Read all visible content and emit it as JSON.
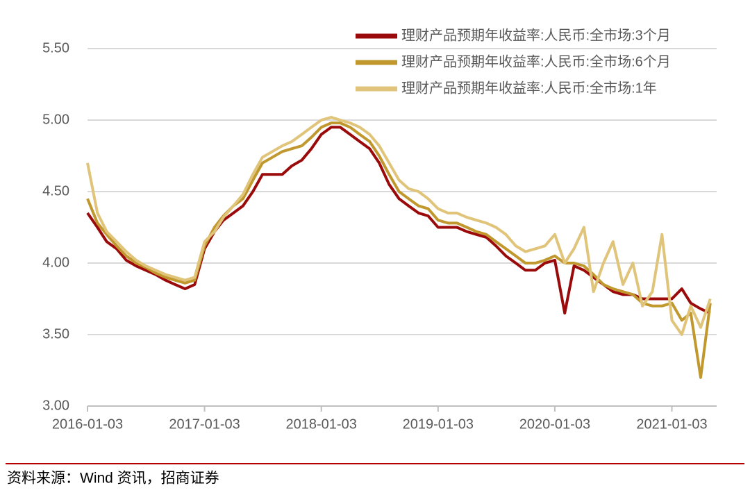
{
  "chart_data": {
    "type": "line",
    "x": [
      "2016-01-03",
      "2016-02-03",
      "2016-03-03",
      "2016-04-03",
      "2016-05-03",
      "2016-06-03",
      "2016-07-03",
      "2016-08-03",
      "2016-09-03",
      "2016-10-03",
      "2016-11-03",
      "2016-12-03",
      "2017-01-03",
      "2017-02-03",
      "2017-03-03",
      "2017-04-03",
      "2017-05-03",
      "2017-06-03",
      "2017-07-03",
      "2017-08-03",
      "2017-09-03",
      "2017-10-03",
      "2017-11-03",
      "2017-12-03",
      "2018-01-03",
      "2018-02-03",
      "2018-03-03",
      "2018-04-03",
      "2018-05-03",
      "2018-06-03",
      "2018-07-03",
      "2018-08-03",
      "2018-09-03",
      "2018-10-03",
      "2018-11-03",
      "2018-12-03",
      "2019-01-03",
      "2019-02-03",
      "2019-03-03",
      "2019-04-03",
      "2019-05-03",
      "2019-06-03",
      "2019-07-03",
      "2019-08-03",
      "2019-09-03",
      "2019-10-03",
      "2019-11-03",
      "2019-12-03",
      "2020-01-03",
      "2020-02-03",
      "2020-03-03",
      "2020-04-03",
      "2020-05-03",
      "2020-06-03",
      "2020-07-03",
      "2020-08-03",
      "2020-09-03",
      "2020-10-03",
      "2020-11-03",
      "2020-12-03",
      "2021-01-03",
      "2021-02-03",
      "2021-03-03",
      "2021-04-03",
      "2021-05-03"
    ],
    "series": [
      {
        "name": "理财产品预期年收益率:人民币:全市场:3个月",
        "color": "#9b0a0a",
        "values": [
          4.35,
          4.25,
          4.15,
          4.1,
          4.02,
          3.98,
          3.95,
          3.92,
          3.88,
          3.85,
          3.82,
          3.85,
          4.1,
          4.22,
          4.3,
          4.35,
          4.4,
          4.5,
          4.62,
          4.62,
          4.62,
          4.68,
          4.72,
          4.8,
          4.9,
          4.95,
          4.95,
          4.9,
          4.85,
          4.8,
          4.7,
          4.55,
          4.45,
          4.4,
          4.35,
          4.33,
          4.25,
          4.25,
          4.25,
          4.22,
          4.2,
          4.18,
          4.12,
          4.05,
          4.0,
          3.95,
          3.95,
          4.0,
          4.02,
          3.65,
          3.98,
          3.95,
          3.9,
          3.85,
          3.8,
          3.78,
          3.78,
          3.75,
          3.75,
          3.75,
          3.75,
          3.82,
          3.72,
          3.68,
          3.65
        ]
      },
      {
        "name": "理财产品预期年收益率:人民币:全市场:6个月",
        "color": "#c0982e",
        "values": [
          4.45,
          4.28,
          4.2,
          4.12,
          4.05,
          4.0,
          3.97,
          3.93,
          3.9,
          3.88,
          3.86,
          3.88,
          4.12,
          4.25,
          4.33,
          4.4,
          4.45,
          4.58,
          4.7,
          4.74,
          4.78,
          4.8,
          4.82,
          4.88,
          4.95,
          4.98,
          4.98,
          4.95,
          4.9,
          4.85,
          4.75,
          4.62,
          4.5,
          4.45,
          4.4,
          4.38,
          4.3,
          4.28,
          4.28,
          4.25,
          4.22,
          4.2,
          4.15,
          4.1,
          4.05,
          4.0,
          4.0,
          4.02,
          4.05,
          4.0,
          4.0,
          3.98,
          3.92,
          3.85,
          3.82,
          3.8,
          3.78,
          3.72,
          3.7,
          3.7,
          3.72,
          3.6,
          3.65,
          3.2,
          3.72
        ]
      },
      {
        "name": "理财产品预期年收益率:人民币:全市场:1年",
        "color": "#e0c47a",
        "values": [
          4.7,
          4.35,
          4.22,
          4.15,
          4.08,
          4.02,
          3.98,
          3.95,
          3.92,
          3.9,
          3.88,
          3.9,
          4.15,
          4.22,
          4.32,
          4.4,
          4.48,
          4.62,
          4.74,
          4.78,
          4.82,
          4.85,
          4.9,
          4.95,
          5.0,
          5.02,
          5.0,
          4.98,
          4.95,
          4.9,
          4.82,
          4.7,
          4.58,
          4.52,
          4.5,
          4.45,
          4.38,
          4.35,
          4.35,
          4.32,
          4.3,
          4.28,
          4.25,
          4.2,
          4.12,
          4.08,
          4.1,
          4.12,
          4.2,
          4.0,
          4.1,
          4.25,
          3.8,
          4.0,
          4.15,
          3.85,
          4.0,
          3.7,
          3.8,
          4.2,
          3.6,
          3.5,
          3.7,
          3.55,
          3.75
        ]
      }
    ],
    "xlim": [
      "2016-01-03",
      "2021-05-23"
    ],
    "xticks": [
      "2016-01-03",
      "2017-01-03",
      "2018-01-03",
      "2019-01-03",
      "2020-01-03",
      "2021-01-03"
    ],
    "ylim": [
      3,
      5.5
    ],
    "yticks": [
      {
        "value": 3,
        "label": "3.00"
      },
      {
        "value": 3.5,
        "label": "3.50"
      },
      {
        "value": 4,
        "label": "4.00"
      },
      {
        "value": 4.5,
        "label": "4.50"
      },
      {
        "value": 5,
        "label": "5.00"
      },
      {
        "value": 5.5,
        "label": "5.50"
      }
    ],
    "grid": true,
    "legend": "upper right"
  },
  "source": "资料来源：Wind 资讯，招商证券"
}
